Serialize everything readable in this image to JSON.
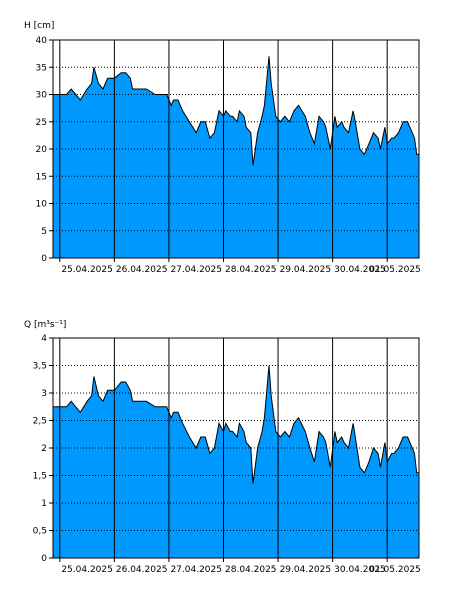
{
  "colors": {
    "fill": "#0099ff",
    "stroke": "#000000",
    "grid": "#000000",
    "background": "#ffffff"
  },
  "chart_data": [
    {
      "type": "area",
      "ylabel": "H [cm]",
      "ylim": [
        0,
        40
      ],
      "yticks": [
        "0",
        "5",
        "10",
        "15",
        "20",
        "25",
        "30",
        "35",
        "40"
      ],
      "xticks": [
        "25.04.2025",
        "26.04.2025",
        "27.04.2025",
        "28.04.2025",
        "29.04.2025",
        "30.04.2025",
        "01.05.2025"
      ],
      "xlim": [
        "2025-04-24T21:00",
        "2025-05-01T14:00"
      ],
      "grid": true,
      "x": [
        "2025-04-24T21:00",
        "2025-04-25T03:00",
        "2025-04-25T05:00",
        "2025-04-25T07:00",
        "2025-04-25T09:00",
        "2025-04-25T12:00",
        "2025-04-25T14:00",
        "2025-04-25T15:00",
        "2025-04-25T17:00",
        "2025-04-25T19:00",
        "2025-04-25T21:00",
        "2025-04-26T00:00",
        "2025-04-26T03:00",
        "2025-04-26T05:00",
        "2025-04-26T07:00",
        "2025-04-26T08:00",
        "2025-04-26T10:00",
        "2025-04-26T14:00",
        "2025-04-26T18:00",
        "2025-04-26T21:00",
        "2025-04-26T23:00",
        "2025-04-27T01:00",
        "2025-04-27T02:00",
        "2025-04-27T04:00",
        "2025-04-27T06:00",
        "2025-04-27T09:00",
        "2025-04-27T12:00",
        "2025-04-27T14:00",
        "2025-04-27T16:00",
        "2025-04-27T18:00",
        "2025-04-27T20:00",
        "2025-04-27T22:00",
        "2025-04-28T00:00",
        "2025-04-28T01:00",
        "2025-04-28T03:00",
        "2025-04-28T04:00",
        "2025-04-28T06:00",
        "2025-04-28T07:00",
        "2025-04-28T09:00",
        "2025-04-28T10:00",
        "2025-04-28T12:00",
        "2025-04-28T13:00",
        "2025-04-28T15:00",
        "2025-04-28T17:00",
        "2025-04-28T18:00",
        "2025-04-28T20:00",
        "2025-04-28T21:00",
        "2025-04-28T23:00",
        "2025-04-29T01:00",
        "2025-04-29T03:00",
        "2025-04-29T05:00",
        "2025-04-29T07:00",
        "2025-04-29T09:00",
        "2025-04-29T12:00",
        "2025-04-29T14:00",
        "2025-04-29T16:00",
        "2025-04-29T18:00",
        "2025-04-29T20:00",
        "2025-04-29T21:00",
        "2025-04-29T23:00",
        "2025-04-30T01:00",
        "2025-04-30T02:00",
        "2025-04-30T04:00",
        "2025-04-30T05:00",
        "2025-04-30T07:00",
        "2025-04-30T09:00",
        "2025-04-30T10:00",
        "2025-04-30T12:00",
        "2025-04-30T14:00",
        "2025-04-30T16:00",
        "2025-04-30T18:00",
        "2025-04-30T20:00",
        "2025-04-30T21:00",
        "2025-04-30T23:00",
        "2025-05-01T00:00",
        "2025-05-01T02:00",
        "2025-05-01T03:00",
        "2025-05-01T05:00",
        "2025-05-01T07:00",
        "2025-05-01T09:00",
        "2025-05-01T11:00",
        "2025-05-01T12:00",
        "2025-05-01T13:00",
        "2025-05-01T14:00"
      ],
      "values": [
        30,
        30,
        31,
        30,
        29,
        31,
        32,
        35,
        32,
        31,
        33,
        33,
        34,
        34,
        33,
        31,
        31,
        31,
        30,
        30,
        30,
        28,
        29,
        29,
        27,
        25,
        23,
        25,
        25,
        22,
        23,
        27,
        26,
        27,
        26,
        26,
        25,
        27,
        26,
        24,
        23,
        17,
        23,
        26,
        28,
        37,
        32,
        26,
        25,
        26,
        25,
        27,
        28,
        26,
        23,
        21,
        26,
        25,
        24,
        20,
        26,
        24,
        25,
        24,
        23,
        27,
        25,
        20,
        19,
        21,
        23,
        22,
        20,
        24,
        21,
        22,
        22,
        23,
        25,
        25,
        23,
        22,
        19,
        19
      ]
    },
    {
      "type": "area",
      "ylabel": "Q [m³s⁻¹]",
      "ylim": [
        0,
        4
      ],
      "yticks": [
        "0",
        "0,5",
        "1",
        "1,5",
        "2",
        "2,5",
        "3",
        "3,5",
        "4"
      ],
      "xticks": [
        "25.04.2025",
        "26.04.2025",
        "27.04.2025",
        "28.04.2025",
        "29.04.2025",
        "30.04.2025",
        "01.05.2025"
      ],
      "xlim": [
        "2025-04-24T21:00",
        "2025-05-01T14:00"
      ],
      "grid": true,
      "x": [
        "2025-04-24T21:00",
        "2025-04-25T03:00",
        "2025-04-25T05:00",
        "2025-04-25T07:00",
        "2025-04-25T09:00",
        "2025-04-25T12:00",
        "2025-04-25T14:00",
        "2025-04-25T15:00",
        "2025-04-25T17:00",
        "2025-04-25T19:00",
        "2025-04-25T21:00",
        "2025-04-26T00:00",
        "2025-04-26T03:00",
        "2025-04-26T05:00",
        "2025-04-26T07:00",
        "2025-04-26T08:00",
        "2025-04-26T10:00",
        "2025-04-26T14:00",
        "2025-04-26T18:00",
        "2025-04-26T21:00",
        "2025-04-26T23:00",
        "2025-04-27T01:00",
        "2025-04-27T02:00",
        "2025-04-27T04:00",
        "2025-04-27T06:00",
        "2025-04-27T09:00",
        "2025-04-27T12:00",
        "2025-04-27T14:00",
        "2025-04-27T16:00",
        "2025-04-27T18:00",
        "2025-04-27T20:00",
        "2025-04-27T22:00",
        "2025-04-28T00:00",
        "2025-04-28T01:00",
        "2025-04-28T03:00",
        "2025-04-28T04:00",
        "2025-04-28T06:00",
        "2025-04-28T07:00",
        "2025-04-28T09:00",
        "2025-04-28T10:00",
        "2025-04-28T12:00",
        "2025-04-28T13:00",
        "2025-04-28T15:00",
        "2025-04-28T17:00",
        "2025-04-28T18:00",
        "2025-04-28T20:00",
        "2025-04-28T21:00",
        "2025-04-28T23:00",
        "2025-04-29T01:00",
        "2025-04-29T03:00",
        "2025-04-29T05:00",
        "2025-04-29T07:00",
        "2025-04-29T09:00",
        "2025-04-29T12:00",
        "2025-04-29T14:00",
        "2025-04-29T16:00",
        "2025-04-29T18:00",
        "2025-04-29T20:00",
        "2025-04-29T21:00",
        "2025-04-29T23:00",
        "2025-04-30T01:00",
        "2025-04-30T02:00",
        "2025-04-30T04:00",
        "2025-04-30T05:00",
        "2025-04-30T07:00",
        "2025-04-30T09:00",
        "2025-04-30T10:00",
        "2025-04-30T12:00",
        "2025-04-30T14:00",
        "2025-04-30T16:00",
        "2025-04-30T18:00",
        "2025-04-30T20:00",
        "2025-04-30T21:00",
        "2025-04-30T23:00",
        "2025-05-01T00:00",
        "2025-05-01T02:00",
        "2025-05-01T03:00",
        "2025-05-01T05:00",
        "2025-05-01T07:00",
        "2025-05-01T09:00",
        "2025-05-01T11:00",
        "2025-05-01T12:00",
        "2025-05-01T13:00",
        "2025-05-01T14:00"
      ],
      "values": [
        2.75,
        2.75,
        2.85,
        2.75,
        2.65,
        2.85,
        2.95,
        3.3,
        2.95,
        2.85,
        3.05,
        3.05,
        3.2,
        3.2,
        3.05,
        2.85,
        2.85,
        2.85,
        2.75,
        2.75,
        2.75,
        2.55,
        2.65,
        2.65,
        2.45,
        2.2,
        2.0,
        2.2,
        2.2,
        1.9,
        2.0,
        2.45,
        2.3,
        2.45,
        2.3,
        2.3,
        2.2,
        2.45,
        2.3,
        2.1,
        2.0,
        1.35,
        2.0,
        2.3,
        2.55,
        3.5,
        2.95,
        2.3,
        2.2,
        2.3,
        2.2,
        2.45,
        2.55,
        2.3,
        2.0,
        1.75,
        2.3,
        2.2,
        2.1,
        1.65,
        2.3,
        2.1,
        2.2,
        2.1,
        2.0,
        2.45,
        2.2,
        1.65,
        1.55,
        1.75,
        2.0,
        1.9,
        1.65,
        2.1,
        1.75,
        1.9,
        1.9,
        2.0,
        2.2,
        2.2,
        2.0,
        1.9,
        1.55,
        1.55
      ]
    }
  ]
}
